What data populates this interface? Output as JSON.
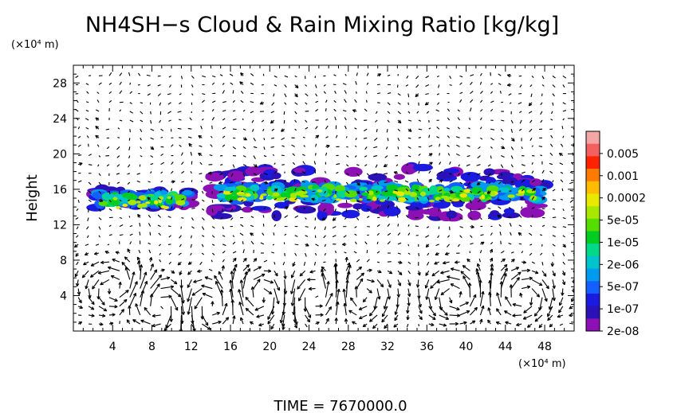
{
  "chart_data": {
    "type": "heatmap",
    "title": "NH4SH−s Cloud & Rain Mixing Ratio [kg/kg]",
    "ylabel": "Height",
    "y_unit": "(×10⁴ m)",
    "x_unit": "(×10⁴ m)",
    "footer": "TIME  =  7670000.0",
    "xlim": [
      0,
      51
    ],
    "ylim": [
      0,
      30
    ],
    "x_ticks": [
      "4",
      "8",
      "12",
      "16",
      "20",
      "24",
      "28",
      "32",
      "36",
      "40",
      "44",
      "48"
    ],
    "y_ticks": [
      "4",
      "8",
      "12",
      "16",
      "20",
      "24",
      "28"
    ],
    "colorbar": {
      "labels": [
        "0.005",
        "0.001",
        "0.0002",
        "5e-05",
        "1e-05",
        "2e-06",
        "5e-07",
        "1e-07",
        "2e-08"
      ],
      "colors": [
        "#f4a6a6",
        "#f46060",
        "#ff2200",
        "#ff7a00",
        "#ffbb00",
        "#e8e800",
        "#a8e800",
        "#55dd00",
        "#00cc22",
        "#00d88a",
        "#00c4cc",
        "#009aee",
        "#1460ff",
        "#1a1ae0",
        "#2a12b8",
        "#8c10b4"
      ]
    },
    "cloud_layers": [
      {
        "x_start": 2,
        "x_end": 12.5,
        "y_bottom": 13.8,
        "y_top": 16
      },
      {
        "x_start": 14,
        "x_end": 48.5,
        "y_bottom": 12.8,
        "y_top": 18.5
      }
    ],
    "vector_field": "wind arrows over the domain; strong circulation cells below ~10 km"
  }
}
